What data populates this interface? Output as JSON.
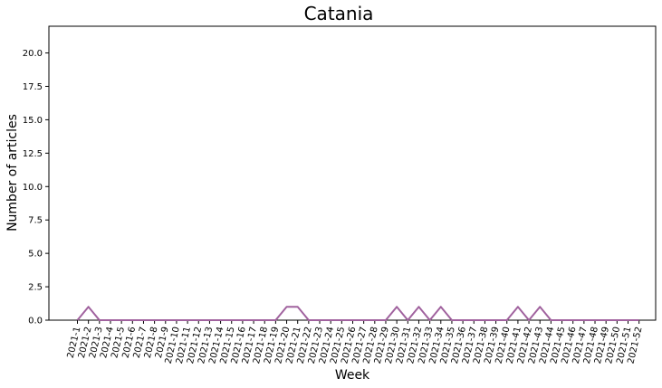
{
  "chart_data": {
    "type": "line",
    "title": "Catania",
    "xlabel": "Week",
    "ylabel": "Number of articles",
    "ylim": [
      0,
      22
    ],
    "yticks": [
      "0.0",
      "2.5",
      "5.0",
      "7.5",
      "10.0",
      "12.5",
      "15.0",
      "17.5",
      "20.0"
    ],
    "grid": false,
    "line_color": "#a0629e",
    "categories": [
      "2021-1",
      "2021-2",
      "2021-3",
      "2021-4",
      "2021-5",
      "2021-6",
      "2021-7",
      "2021-8",
      "2021-9",
      "2021-10",
      "2021-11",
      "2021-12",
      "2021-13",
      "2021-14",
      "2021-15",
      "2021-16",
      "2021-17",
      "2021-18",
      "2021-19",
      "2021-20",
      "2021-21",
      "2021-22",
      "2021-23",
      "2021-24",
      "2021-25",
      "2021-26",
      "2021-27",
      "2021-28",
      "2021-29",
      "2021-30",
      "2021-31",
      "2021-32",
      "2021-33",
      "2021-34",
      "2021-35",
      "2021-36",
      "2021-37",
      "2021-38",
      "2021-39",
      "2021-40",
      "2021-41",
      "2021-42",
      "2021-43",
      "2021-44",
      "2021-45",
      "2021-46",
      "2021-47",
      "2021-48",
      "2021-49",
      "2021-50",
      "2021-51",
      "2021-52"
    ],
    "values": [
      0,
      1,
      0,
      0,
      0,
      0,
      0,
      0,
      0,
      0,
      0,
      0,
      0,
      0,
      0,
      0,
      0,
      0,
      0,
      1,
      1,
      0,
      0,
      0,
      0,
      0,
      0,
      0,
      0,
      1,
      0,
      1,
      0,
      1,
      0,
      0,
      0,
      0,
      0,
      0,
      1,
      0,
      1,
      0,
      0,
      0,
      0,
      0,
      0,
      0,
      0,
      0
    ]
  }
}
